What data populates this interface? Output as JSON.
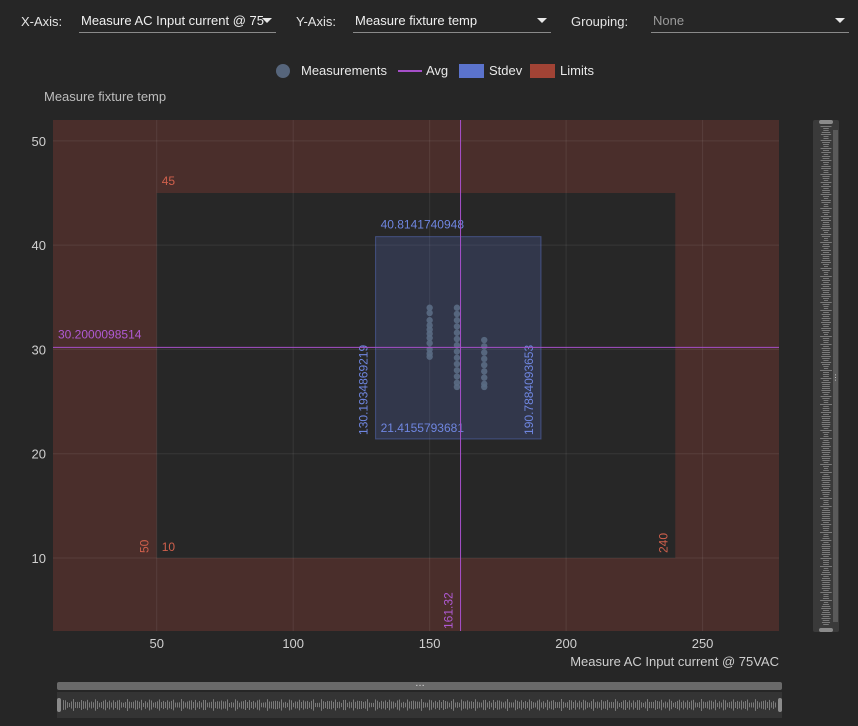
{
  "toolbar": {
    "x_axis_label": "X-Axis:",
    "x_axis_value": "Measure AC Input current @ 75",
    "y_axis_label": "Y-Axis:",
    "y_axis_value": "Measure fixture temp",
    "grouping_label": "Grouping:",
    "grouping_value": "None"
  },
  "legend": {
    "measurements": "Measurements",
    "avg": "Avg",
    "stdev": "Stdev",
    "limits": "Limits"
  },
  "colors": {
    "measurements": "#5a6b84",
    "avg": "#a64fc9",
    "stdev": "#5b73cc",
    "limits": "#a14335",
    "limit_zone": "#4a2e2b",
    "inner_zone": "#272727"
  },
  "chart_data": {
    "type": "scatter",
    "xlabel": "Measure AC Input current @ 75VAC",
    "ylabel": "Measure fixture temp",
    "xlim": [
      12,
      278
    ],
    "ylim": [
      3,
      52
    ],
    "x_ticks": [
      50,
      100,
      150,
      200,
      250
    ],
    "y_ticks": [
      10,
      20,
      30,
      40,
      50
    ],
    "grid": true,
    "legend_position": "top-center",
    "limits": {
      "x_min": 50,
      "x_max": 240,
      "y_min": 10,
      "y_max": 45
    },
    "limit_labels": {
      "x_min": "50",
      "x_max": "240",
      "y_min": "10",
      "y_max": "45"
    },
    "avg": {
      "x": 161.32,
      "y": 30.2000098514,
      "x_label": "161.32",
      "y_label": "30.2000098514"
    },
    "stdev": {
      "x_min": 130.1934869219,
      "x_max": 190.7884093653,
      "y_min": 21.4155793681,
      "y_max": 40.8141740948,
      "x_min_label": "130.1934869219",
      "x_max_label": "190.7884093653",
      "y_min_label": "21.4155793681",
      "y_max_label": "40.8141740948"
    },
    "series": [
      {
        "points": [
          [
            150,
            34.0
          ],
          [
            150,
            33.5
          ],
          [
            150,
            32.8
          ],
          [
            150,
            32.3
          ],
          [
            150,
            31.9
          ],
          [
            150,
            31.5
          ],
          [
            150,
            31.1
          ],
          [
            150,
            30.6
          ],
          [
            150,
            30.0
          ],
          [
            150,
            29.6
          ],
          [
            150,
            29.3
          ],
          [
            160,
            34.0
          ],
          [
            160,
            33.4
          ],
          [
            160,
            32.8
          ],
          [
            160,
            32.2
          ],
          [
            160,
            31.6
          ],
          [
            160,
            31.0
          ],
          [
            160,
            30.4
          ],
          [
            160,
            29.8
          ],
          [
            160,
            29.2
          ],
          [
            160,
            28.6
          ],
          [
            160,
            28.0
          ],
          [
            160,
            27.4
          ],
          [
            160,
            26.8
          ],
          [
            160,
            26.4
          ],
          [
            170,
            30.9
          ],
          [
            170,
            30.3
          ],
          [
            170,
            29.7
          ],
          [
            170,
            29.1
          ],
          [
            170,
            28.5
          ],
          [
            170,
            27.9
          ],
          [
            170,
            27.3
          ],
          [
            170,
            26.7
          ],
          [
            170,
            26.4
          ]
        ]
      }
    ]
  }
}
